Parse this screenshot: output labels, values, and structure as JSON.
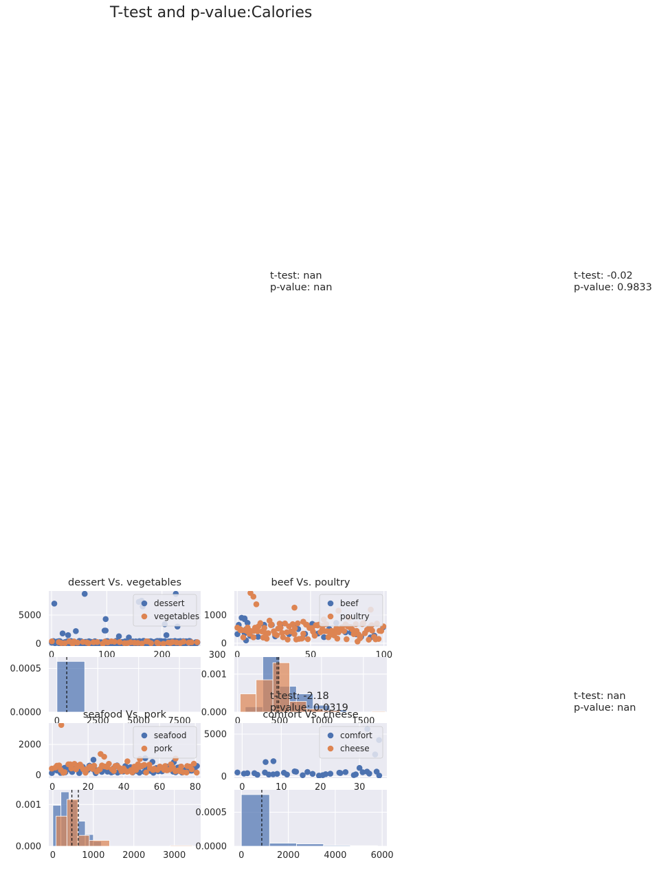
{
  "suptitle": "T-test and p-value:Calories",
  "annotations": [
    {
      "ttest": "t-test: nan",
      "pvalue": "p-value: nan"
    },
    {
      "ttest": "t-test: -0.02",
      "pvalue": "p-value: 0.9833"
    },
    {
      "ttest": "t-test: -2.18",
      "pvalue": "p-value: 0.0319"
    },
    {
      "ttest": "t-test: nan",
      "pvalue": "p-value: nan"
    }
  ],
  "colors": {
    "series_a": "#4c72b0",
    "series_b": "#dd8452",
    "axes_bg": "#eaeaf2",
    "grid": "#ffffff"
  },
  "chart_data": [
    {
      "type": "scatter",
      "title": "dessert Vs. vegetables",
      "xlim": [
        -5,
        270
      ],
      "ylim": [
        -400,
        9200
      ],
      "xticks": [
        0,
        100,
        200,
        300
      ],
      "yticks": [
        0,
        5000
      ],
      "legend": "top-right",
      "series": [
        {
          "name": "dessert",
          "n": 250,
          "base": 150,
          "spread": 350,
          "outliers": [
            [
              5,
              7000
            ],
            [
              60,
              8700
            ],
            [
              98,
              4300
            ],
            [
              96,
              2300
            ],
            [
              20,
              1800
            ],
            [
              30,
              1500
            ],
            [
              98,
              2300
            ],
            [
              158,
              7300
            ],
            [
              163,
              7500
            ],
            [
              165,
              6500
            ],
            [
              205,
              3400
            ],
            [
              225,
              8700
            ],
            [
              228,
              3000
            ],
            [
              208,
              1500
            ],
            [
              122,
              1300
            ],
            [
              140,
              1100
            ],
            [
              44,
              2200
            ]
          ]
        },
        {
          "name": "vegetables",
          "n": 40,
          "base": 180,
          "spread": 250,
          "outliers": []
        }
      ]
    },
    {
      "type": "histogram",
      "xlim": [
        -500,
        8800
      ],
      "ylim": [
        0,
        0.00063
      ],
      "xticks": [
        0,
        2500,
        5000,
        7500
      ],
      "yticks": [
        0,
        0.0005
      ],
      "ytick_labels": [
        "0.0000",
        "0.0005"
      ],
      "series": [
        {
          "name": "dessert",
          "bars": [
            [
              0,
              1700,
              0.00058
            ]
          ],
          "mean": 600
        }
      ]
    },
    {
      "type": "scatter",
      "title": "beef Vs. poultry",
      "xlim": [
        -2,
        102
      ],
      "ylim": [
        -100,
        1850
      ],
      "xticks": [
        0,
        50,
        100
      ],
      "yticks": [
        0,
        1000
      ],
      "legend": "top-right",
      "series": [
        {
          "name": "beef",
          "n": 25,
          "base": 450,
          "spread": 280,
          "outliers": [
            [
              3,
              900
            ],
            [
              5,
              880
            ],
            [
              5,
              850
            ],
            [
              7,
              720
            ],
            [
              5,
              350
            ],
            [
              6,
              100
            ],
            [
              1,
              650
            ]
          ]
        },
        {
          "name": "poultry",
          "n": 100,
          "base": 420,
          "spread": 300,
          "outliers": [
            [
              9,
              1780
            ],
            [
              11,
              1650
            ],
            [
              13,
              1380
            ],
            [
              39,
              1260
            ],
            [
              69,
              1150
            ],
            [
              91,
              1190
            ],
            [
              76,
              900
            ],
            [
              59,
              840
            ],
            [
              22,
              800
            ],
            [
              45,
              760
            ],
            [
              82,
              60
            ]
          ]
        }
      ]
    },
    {
      "type": "histogram",
      "xlim": [
        -40,
        1780
      ],
      "ylim": [
        0,
        0.00145
      ],
      "xticks": [
        0,
        500,
        1000,
        1500
      ],
      "yticks": [
        0,
        0.001
      ],
      "ytick_labels": [
        "0.000",
        "0.001"
      ],
      "series": [
        {
          "name": "beef",
          "bars": [
            [
              90,
              300,
              0.00014
            ],
            [
              300,
              500,
              0.00148
            ],
            [
              500,
              700,
              0.00068
            ],
            [
              700,
              900,
              0.00048
            ],
            [
              900,
              1100,
              0.00018
            ],
            [
              1100,
              1300,
              6e-05
            ]
          ],
          "mean": 470
        },
        {
          "name": "poultry",
          "bars": [
            [
              30,
              220,
              0.00048
            ],
            [
              220,
              420,
              0.00085
            ],
            [
              420,
              620,
              0.0013
            ],
            [
              620,
              820,
              0.00028
            ],
            [
              820,
              1020,
              8e-05
            ],
            [
              1020,
              1220,
              4e-05
            ],
            [
              1600,
              1760,
              2e-05
            ]
          ],
          "mean": 490
        }
      ]
    },
    {
      "type": "scatter",
      "title": "seafood Vs. pork",
      "xlim": [
        -2,
        83
      ],
      "ylim": [
        -200,
        3400
      ],
      "xticks": [
        0,
        20,
        40,
        60,
        80
      ],
      "yticks": [
        0,
        2000
      ],
      "legend": "top-right",
      "series": [
        {
          "name": "seafood",
          "n": 80,
          "base": 380,
          "spread": 250,
          "outliers": [
            [
              52,
              1100
            ],
            [
              56,
              860
            ],
            [
              68,
              850
            ],
            [
              23,
              1000
            ]
          ]
        },
        {
          "name": "pork",
          "n": 70,
          "base": 450,
          "spread": 300,
          "outliers": [
            [
              5,
              3280
            ],
            [
              27,
              1380
            ],
            [
              29,
              1200
            ],
            [
              69,
              1080
            ],
            [
              49,
              1050
            ],
            [
              42,
              900
            ]
          ]
        }
      ]
    },
    {
      "type": "histogram",
      "xlim": [
        -100,
        3650
      ],
      "ylim": [
        0,
        0.00135
      ],
      "xticks": [
        0,
        1000,
        2000,
        3000
      ],
      "yticks": [
        0,
        0.001
      ],
      "ytick_labels": [
        "0.000",
        "0.001"
      ],
      "series": [
        {
          "name": "seafood",
          "bars": [
            [
              0,
              200,
              0.00098
            ],
            [
              200,
              400,
              0.0013
            ],
            [
              400,
              600,
              0.0011
            ],
            [
              600,
              800,
              0.0006
            ],
            [
              800,
              1000,
              0.00028
            ],
            [
              1000,
              1200,
              0.00012
            ]
          ],
          "mean": 630
        },
        {
          "name": "pork",
          "bars": [
            [
              80,
              350,
              0.00072
            ],
            [
              350,
              620,
              0.00112
            ],
            [
              620,
              900,
              0.00026
            ],
            [
              900,
              1400,
              0.00014
            ],
            [
              2900,
              3450,
              1.8e-05
            ]
          ],
          "mean": 470
        }
      ]
    },
    {
      "type": "scatter",
      "title": "comfort Vs. cheese",
      "xlim": [
        -2,
        37
      ],
      "ylim": [
        -200,
        6300
      ],
      "xticks": [
        0,
        10,
        20,
        30
      ],
      "yticks": [
        0,
        5000
      ],
      "legend": "top-right",
      "series": [
        {
          "name": "comfort",
          "n": 30,
          "base": 350,
          "spread": 250,
          "outliers": [
            [
              6,
              1700
            ],
            [
              8,
              1800
            ],
            [
              35,
              4300
            ],
            [
              32,
              5600
            ],
            [
              34,
              2600
            ],
            [
              30,
              1000
            ]
          ]
        },
        {
          "name": "cheese",
          "n": 0,
          "base": 0,
          "spread": 0,
          "outliers": []
        }
      ]
    },
    {
      "type": "histogram",
      "xlim": [
        -300,
        6200
      ],
      "ylim": [
        0,
        0.00083
      ],
      "xticks": [
        0,
        2000,
        4000,
        6000
      ],
      "yticks": [
        0,
        0.0005
      ],
      "ytick_labels": [
        "0.0000",
        "0.0005"
      ],
      "series": [
        {
          "name": "comfort",
          "bars": [
            [
              0,
              1200,
              0.00076
            ],
            [
              1200,
              2350,
              4.5e-05
            ],
            [
              2350,
              3500,
              3.5e-05
            ],
            [
              3500,
              4650,
              1.2e-05
            ],
            [
              4650,
              5800,
              8e-06
            ]
          ],
          "mean": 870
        }
      ]
    }
  ]
}
